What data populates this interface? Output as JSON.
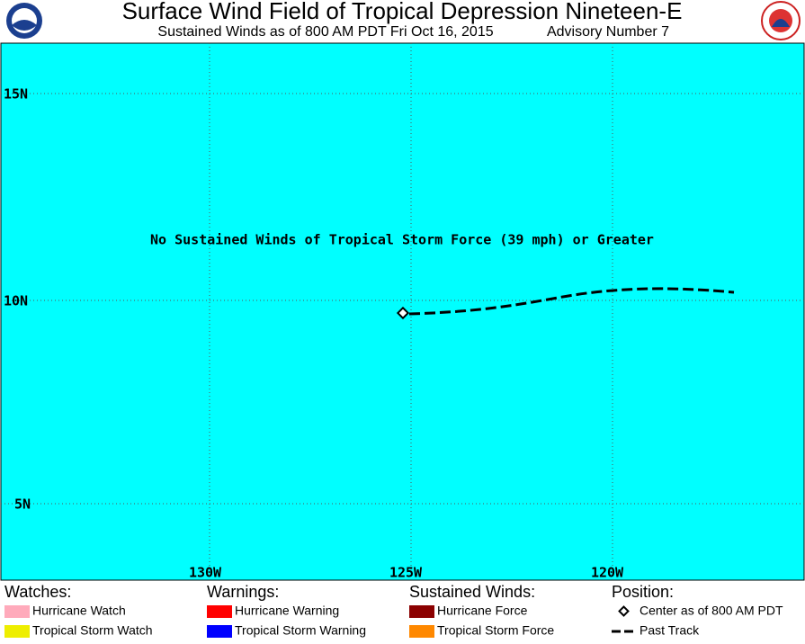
{
  "header": {
    "title": "Surface Wind Field of Tropical Depression Nineteen-E",
    "subtitle": "Sustained Winds as of 800 AM PDT Fri Oct 16, 2015",
    "advisory": "Advisory Number 7"
  },
  "map": {
    "latitude_labels": [
      "15N",
      "10N",
      "5N"
    ],
    "longitude_labels": [
      "130W",
      "125W",
      "120W"
    ],
    "notice": "No Sustained Winds of Tropical Storm Force (39 mph) or Greater"
  },
  "legend": [
    {
      "heading": "Watches:",
      "items": [
        "Hurricane Watch",
        "Tropical Storm Watch"
      ]
    },
    {
      "heading": "Warnings:",
      "items": [
        "Hurricane Warning",
        "Tropical Storm Warning"
      ]
    },
    {
      "heading": "Sustained Winds:",
      "items": [
        "Hurricane Force",
        "Tropical Storm Force"
      ]
    },
    {
      "heading": "Position:",
      "items": [
        "Center as of 800 AM PDT",
        "Past Track"
      ]
    }
  ]
}
